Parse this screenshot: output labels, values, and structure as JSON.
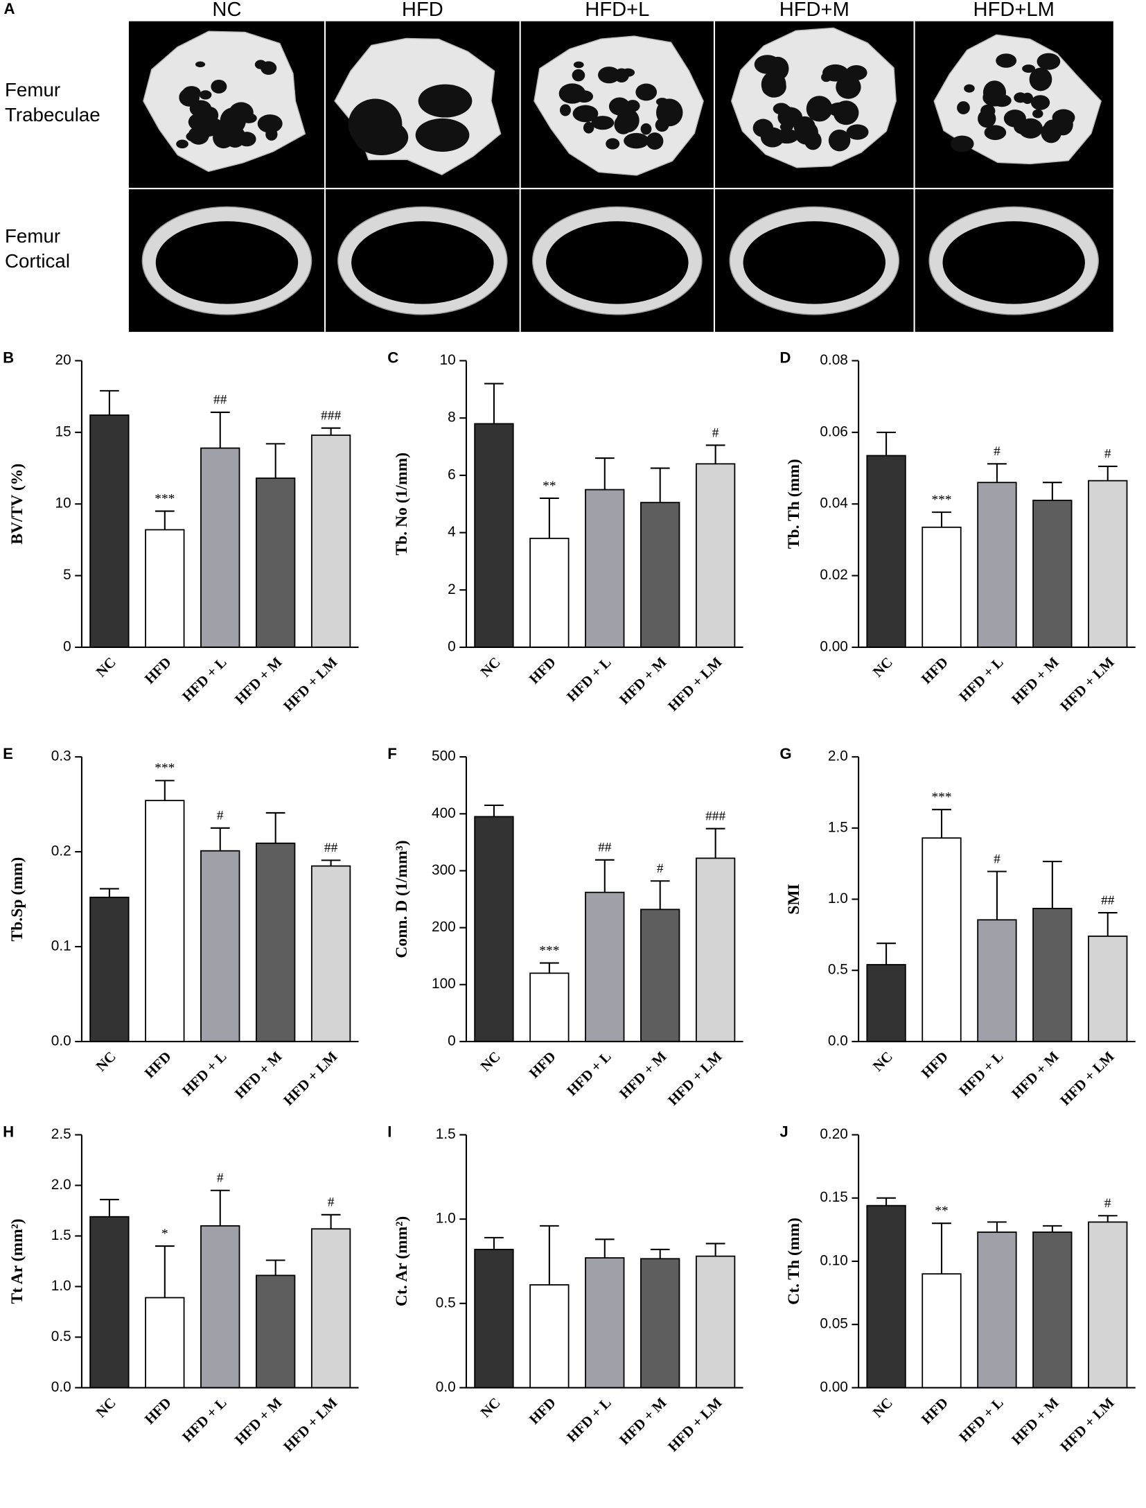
{
  "image_panel": {
    "panel_label": "A",
    "columns": [
      "NC",
      "HFD",
      "HFD+L",
      "HFD+M",
      "HFD+LM"
    ],
    "row_labels": [
      [
        "Femur",
        "Trabeculae"
      ],
      [
        "Femur",
        "Cortical"
      ]
    ]
  },
  "chart_data": [
    {
      "type": "bar",
      "panel_label": "B",
      "ylabel": "BV/TV (%)",
      "categories": [
        "NC",
        "HFD",
        "HFD + L",
        "HFD + M",
        "HFD + LM"
      ],
      "values": [
        16.2,
        8.2,
        13.9,
        11.8,
        14.8
      ],
      "errors": [
        1.7,
        1.3,
        2.5,
        2.4,
        0.5
      ],
      "annotations": [
        null,
        "***",
        "##",
        null,
        "###"
      ],
      "colors": [
        "#333333",
        "#ffffff",
        "#a0a0a8",
        "#5e5e5e",
        "#d4d4d4"
      ],
      "ylim": [
        0,
        20
      ],
      "yticks": [
        0,
        5,
        10,
        15,
        20
      ]
    },
    {
      "type": "bar",
      "panel_label": "C",
      "ylabel": "Tb. No (1/mm)",
      "categories": [
        "NC",
        "HFD",
        "HFD + L",
        "HFD + M",
        "HFD + LM"
      ],
      "values": [
        7.8,
        3.8,
        5.5,
        5.05,
        6.4
      ],
      "errors": [
        1.4,
        1.4,
        1.1,
        1.2,
        0.65
      ],
      "annotations": [
        null,
        "**",
        null,
        null,
        "#"
      ],
      "colors": [
        "#333333",
        "#ffffff",
        "#a0a0a8",
        "#5e5e5e",
        "#d4d4d4"
      ],
      "ylim": [
        0,
        10
      ],
      "yticks": [
        0,
        2,
        4,
        6,
        8,
        10
      ]
    },
    {
      "type": "bar",
      "panel_label": "D",
      "ylabel": "Tb. Th (mm)",
      "categories": [
        "NC",
        "HFD",
        "HFD + L",
        "HFD + M",
        "HFD + LM"
      ],
      "values": [
        0.0535,
        0.0335,
        0.046,
        0.041,
        0.0465
      ],
      "errors": [
        0.0065,
        0.0042,
        0.0052,
        0.005,
        0.004
      ],
      "annotations": [
        null,
        "***",
        "#",
        null,
        "#"
      ],
      "colors": [
        "#333333",
        "#ffffff",
        "#a0a0a8",
        "#5e5e5e",
        "#d4d4d4"
      ],
      "ylim": [
        0,
        0.08
      ],
      "yticks": [
        {
          "value": 0,
          "label": "0.00"
        },
        {
          "value": 0.02,
          "label": "0.02"
        },
        {
          "value": 0.04,
          "label": "0.04"
        },
        {
          "value": 0.06,
          "label": "0.06"
        },
        {
          "value": 0.08,
          "label": "0.08"
        }
      ]
    },
    {
      "type": "bar",
      "panel_label": "E",
      "ylabel": "Tb.Sp (mm)",
      "categories": [
        "NC",
        "HFD",
        "HFD + L",
        "HFD + M",
        "HFD + LM"
      ],
      "values": [
        0.152,
        0.254,
        0.201,
        0.209,
        0.185
      ],
      "errors": [
        0.009,
        0.021,
        0.024,
        0.032,
        0.006
      ],
      "annotations": [
        null,
        "***",
        "#",
        null,
        "##"
      ],
      "colors": [
        "#333333",
        "#ffffff",
        "#a0a0a8",
        "#5e5e5e",
        "#d4d4d4"
      ],
      "ylim": [
        0,
        0.3
      ],
      "yticks": [
        {
          "value": 0,
          "label": "0.0"
        },
        0.1,
        0.2,
        0.3
      ]
    },
    {
      "type": "bar",
      "panel_label": "F",
      "ylabel": "Conn. D (1/mm³)",
      "categories": [
        "NC",
        "HFD",
        "HFD + L",
        "HFD + M",
        "HFD + LM"
      ],
      "values": [
        395,
        120,
        262,
        232,
        322
      ],
      "errors": [
        20,
        18,
        57,
        50,
        52
      ],
      "annotations": [
        null,
        "***",
        "##",
        "#",
        "###"
      ],
      "colors": [
        "#333333",
        "#ffffff",
        "#a0a0a8",
        "#5e5e5e",
        "#d4d4d4"
      ],
      "ylim": [
        0,
        500
      ],
      "yticks": [
        0,
        100,
        200,
        300,
        400,
        500
      ]
    },
    {
      "type": "bar",
      "panel_label": "G",
      "ylabel": "SMI",
      "categories": [
        "NC",
        "HFD",
        "HFD + L",
        "HFD + M",
        "HFD + LM"
      ],
      "values": [
        0.54,
        1.43,
        0.855,
        0.935,
        0.74
      ],
      "errors": [
        0.15,
        0.2,
        0.34,
        0.33,
        0.165
      ],
      "annotations": [
        null,
        "***",
        "#",
        null,
        "##"
      ],
      "colors": [
        "#333333",
        "#ffffff",
        "#a0a0a8",
        "#5e5e5e",
        "#d4d4d4"
      ],
      "ylim": [
        0,
        2.0
      ],
      "yticks": [
        {
          "value": 0,
          "label": "0.0"
        },
        0.5,
        {
          "value": 1,
          "label": "1.0"
        },
        1.5,
        {
          "value": 2,
          "label": "2.0"
        }
      ]
    },
    {
      "type": "bar",
      "panel_label": "H",
      "ylabel": "Tt Ar (mm²)",
      "categories": [
        "NC",
        "HFD",
        "HFD + L",
        "HFD + M",
        "HFD + LM"
      ],
      "values": [
        1.69,
        0.89,
        1.6,
        1.11,
        1.57
      ],
      "errors": [
        0.17,
        0.51,
        0.35,
        0.15,
        0.14
      ],
      "annotations": [
        null,
        "*",
        "#",
        null,
        "#"
      ],
      "colors": [
        "#333333",
        "#ffffff",
        "#a0a0a8",
        "#5e5e5e",
        "#d4d4d4"
      ],
      "ylim": [
        0,
        2.5
      ],
      "yticks": [
        {
          "value": 0,
          "label": "0.0"
        },
        0.5,
        {
          "value": 1,
          "label": "1.0"
        },
        1.5,
        {
          "value": 2,
          "label": "2.0"
        },
        2.5
      ]
    },
    {
      "type": "bar",
      "panel_label": "I",
      "ylabel": "Ct. Ar (mm²)",
      "categories": [
        "NC",
        "HFD",
        "HFD + L",
        "HFD + M",
        "HFD + LM"
      ],
      "values": [
        0.82,
        0.61,
        0.77,
        0.765,
        0.78
      ],
      "errors": [
        0.07,
        0.35,
        0.11,
        0.055,
        0.075
      ],
      "annotations": [
        null,
        null,
        null,
        null,
        null
      ],
      "colors": [
        "#333333",
        "#ffffff",
        "#a0a0a8",
        "#5e5e5e",
        "#d4d4d4"
      ],
      "ylim": [
        0,
        1.5
      ],
      "yticks": [
        {
          "value": 0,
          "label": "0.0"
        },
        0.5,
        {
          "value": 1,
          "label": "1.0"
        },
        1.5
      ]
    },
    {
      "type": "bar",
      "panel_label": "J",
      "ylabel": "Ct. Th (mm)",
      "categories": [
        "NC",
        "HFD",
        "HFD + L",
        "HFD + M",
        "HFD + LM"
      ],
      "values": [
        0.144,
        0.09,
        0.123,
        0.123,
        0.131
      ],
      "errors": [
        0.006,
        0.04,
        0.008,
        0.005,
        0.005
      ],
      "annotations": [
        null,
        "**",
        null,
        null,
        "#"
      ],
      "colors": [
        "#333333",
        "#ffffff",
        "#a0a0a8",
        "#5e5e5e",
        "#d4d4d4"
      ],
      "ylim": [
        0,
        0.2
      ],
      "yticks": [
        {
          "value": 0,
          "label": "0.00"
        },
        {
          "value": 0.05,
          "label": "0.05"
        },
        {
          "value": 0.1,
          "label": "0.10"
        },
        {
          "value": 0.15,
          "label": "0.15"
        },
        {
          "value": 0.2,
          "label": "0.20"
        }
      ]
    }
  ]
}
